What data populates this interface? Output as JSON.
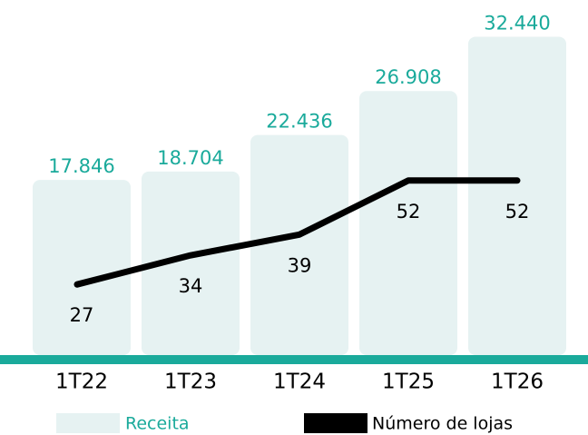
{
  "chart_data": {
    "type": "bar",
    "categories": [
      "1T22",
      "1T23",
      "1T24",
      "1T25",
      "1T26"
    ],
    "series": [
      {
        "name": "Receita",
        "type": "bar",
        "color": "#e6f2f2",
        "label_color": "#1aaa9b",
        "values": [
          17846,
          18704,
          22436,
          26908,
          32440
        ],
        "value_labels": [
          "17.846",
          "18.704",
          "22.436",
          "26.908",
          "32.440"
        ]
      },
      {
        "name": "Número de lojas",
        "type": "line",
        "axis": "y2",
        "color": "#000000",
        "values": [
          27,
          34,
          39,
          52,
          52
        ]
      }
    ],
    "ylim": [
      0,
      36000
    ],
    "y2lim": [
      10,
      95
    ],
    "baseline_color": "#1aaa9b"
  }
}
